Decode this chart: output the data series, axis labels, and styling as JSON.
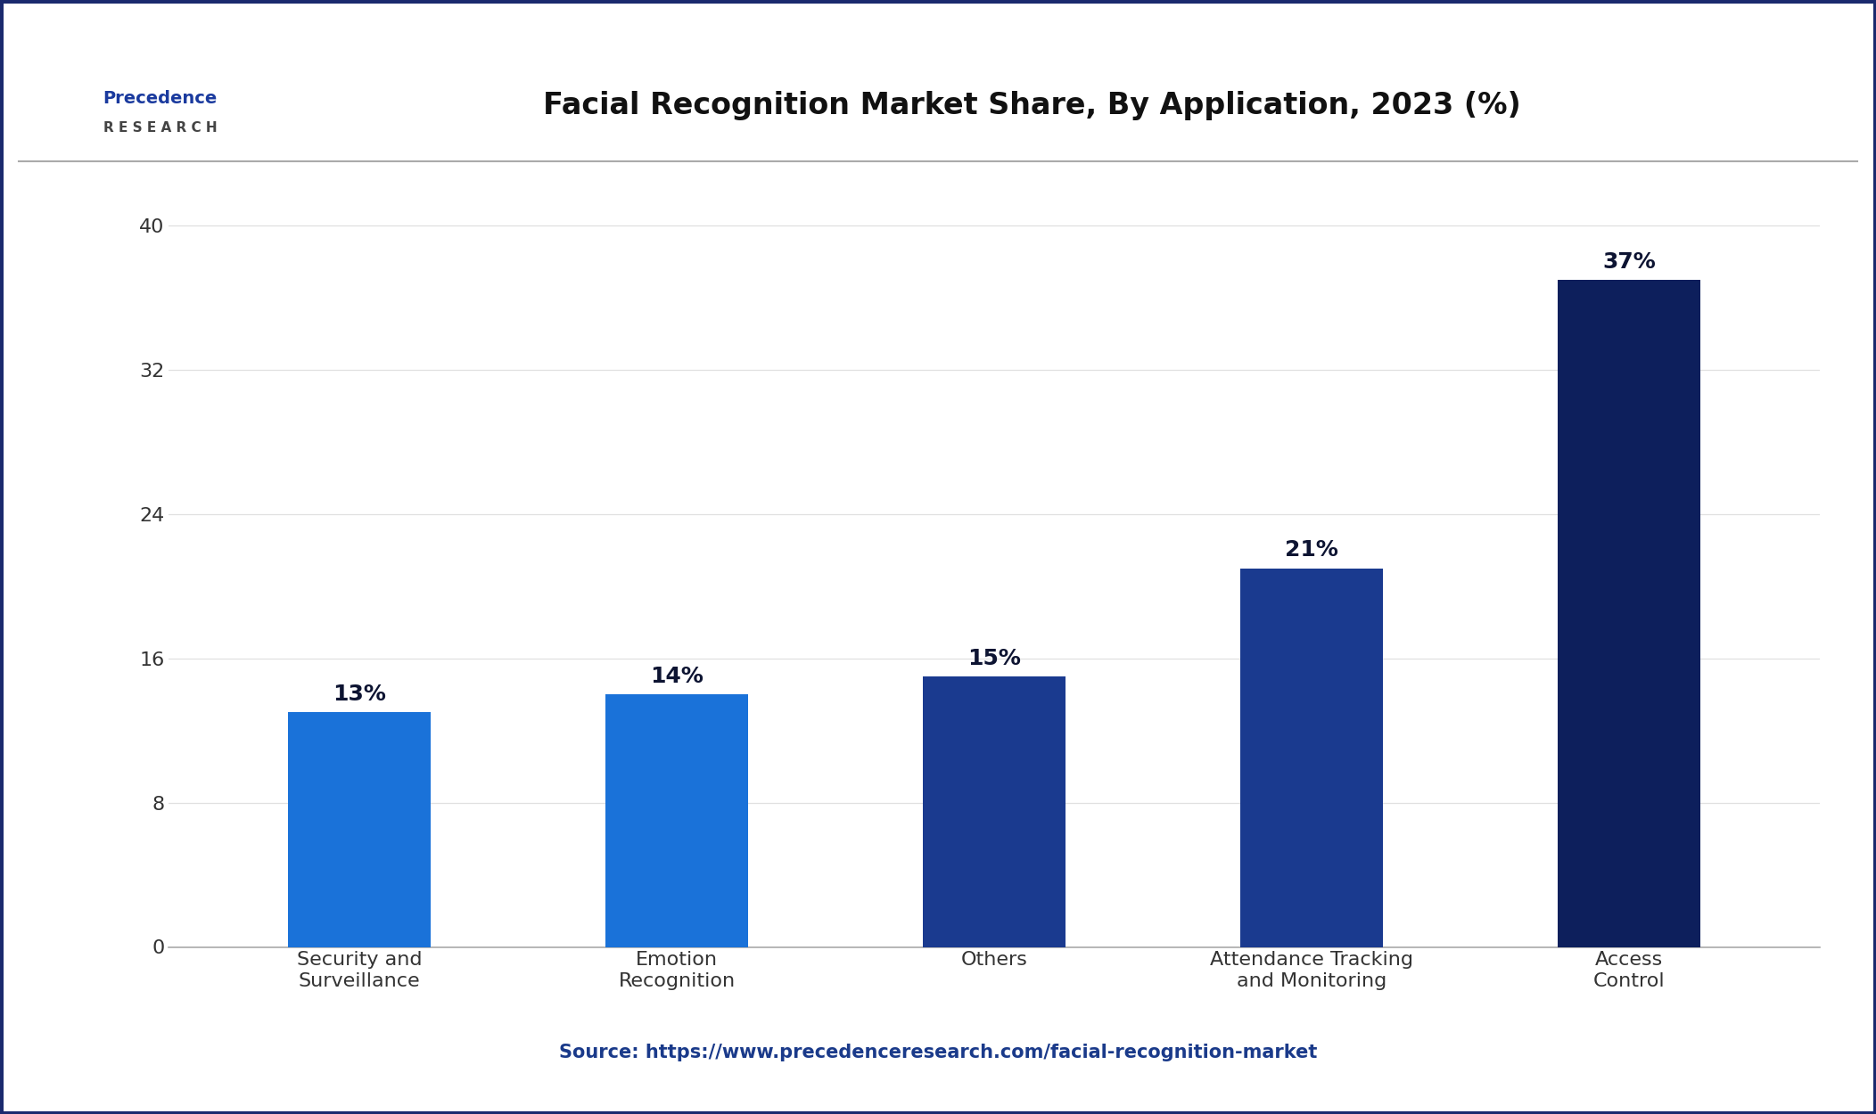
{
  "title": "Facial Recognition Market Share, By Application, 2023 (%)",
  "categories": [
    "Security and\nSurveillance",
    "Emotion\nRecognition",
    "Others",
    "Attendance Tracking\nand Monitoring",
    "Access\nControl"
  ],
  "values": [
    13,
    14,
    15,
    21,
    37
  ],
  "bar_colors": [
    "#1a72d9",
    "#1a72d9",
    "#1a3a8f",
    "#1a3a8f",
    "#0d1f5c"
  ],
  "value_labels": [
    "13%",
    "14%",
    "15%",
    "21%",
    "37%"
  ],
  "ylim": [
    0,
    42
  ],
  "yticks": [
    0,
    8,
    16,
    24,
    32,
    40
  ],
  "background_color": "#ffffff",
  "plot_bg_color": "#ffffff",
  "title_fontsize": 24,
  "tick_fontsize": 16,
  "label_fontsize": 18,
  "source_fontsize": 15,
  "bar_width": 0.45,
  "title_color": "#111111",
  "tick_color": "#333333",
  "value_label_color": "#0d1432",
  "source_color": "#1a3a8a",
  "border_color": "#1a2a6e",
  "grid_color": "#e0e0e0",
  "source_text": "Source: https://www.precedenceresearch.com/facial-recognition-market",
  "logo_line1": "Precedence",
  "logo_line2": "R E S E A R C H"
}
